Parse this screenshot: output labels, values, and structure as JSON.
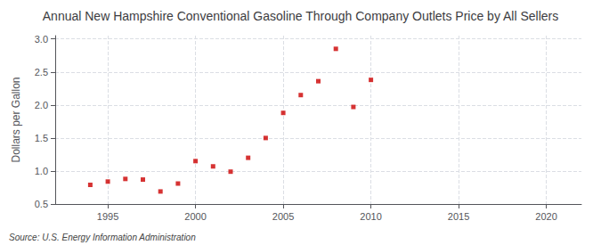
{
  "chart_data": {
    "type": "scatter",
    "title": "Annual New Hampshire Conventional Gasoline Through Company Outlets Price by All Sellers",
    "ylabel": "Dollars per Gallon",
    "annotation": "Source: U.S. Energy Information Administration",
    "x": [
      1994,
      1995,
      1996,
      1997,
      1998,
      1999,
      2000,
      2001,
      2002,
      2003,
      2004,
      2005,
      2006,
      2007,
      2008,
      2009,
      2010
    ],
    "values": [
      0.79,
      0.84,
      0.88,
      0.87,
      0.69,
      0.81,
      1.15,
      1.07,
      0.99,
      1.2,
      1.5,
      1.88,
      2.15,
      2.36,
      2.85,
      1.97,
      2.38
    ],
    "color": "#cc0000",
    "marker": "square",
    "xlim": [
      1992,
      2022
    ],
    "xticks": [
      1995,
      2000,
      2005,
      2010,
      2015,
      2020
    ],
    "ylim": [
      0.5,
      3.05
    ],
    "yticks": [
      0.5,
      {
        "value": 1.0,
        "label": "1.0"
      },
      1.5,
      {
        "value": 2.0,
        "label": "2.0"
      },
      2.5,
      {
        "value": 3.0,
        "label": "3.0"
      }
    ],
    "grid": true
  }
}
